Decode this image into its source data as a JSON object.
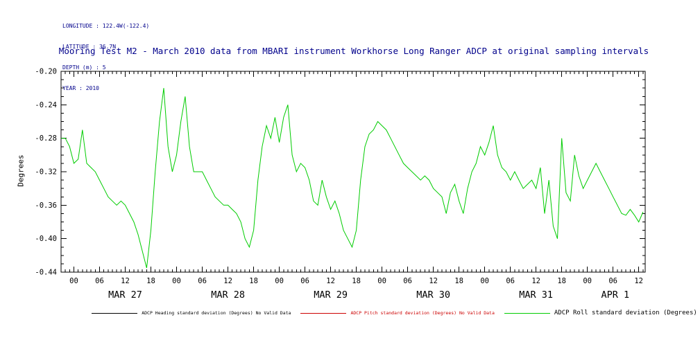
{
  "header_info": {
    "longitude": "LONGITUDE : 122.4W(-122.4)",
    "latitude": "LATITUDE : 36.7N",
    "depth": "DEPTH (m) : 5",
    "year": "YEAR : 2010"
  },
  "chart_data": {
    "type": "line",
    "title": "Mooring Test M2 - March 2010 data from MBARI instrument Workhorse Long Ranger ADCP at original sampling intervals",
    "xlabel": "",
    "ylabel": "Degrees",
    "ylim": [
      -0.44,
      -0.2
    ],
    "ytick_step": 0.04,
    "ytick_labels": [
      "-0.20",
      "-0.24",
      "-0.28",
      "-0.32",
      "-0.36",
      "-0.40",
      "-0.44"
    ],
    "xlim_hours": [
      -3,
      133.5
    ],
    "x_major_tick_hours": 6,
    "x_minor_tick_hours": 1,
    "x_tick_label_cycle": [
      "00",
      "06",
      "12",
      "18"
    ],
    "grid": false,
    "legend_position": "bottom",
    "day_labels": [
      {
        "label": "MAR 27",
        "hour": 12
      },
      {
        "label": "MAR 28",
        "hour": 36
      },
      {
        "label": "MAR 29",
        "hour": 60
      },
      {
        "label": "MAR 30",
        "hour": 84
      },
      {
        "label": "MAR 31",
        "hour": 108
      },
      {
        "label": "APR 1",
        "hour": 126.5
      }
    ],
    "series": [
      {
        "name": "ADCP Heading standard deviation (Degrees)",
        "color": "#000000",
        "status": "No Valid Data",
        "values": []
      },
      {
        "name": "ADCP Pitch standard deviation (Degrees)",
        "color": "#cc0000",
        "status": "No Valid Data",
        "values": []
      },
      {
        "name": "ADCP Roll standard deviation (Degrees)",
        "color": "#00cc00",
        "status": "",
        "x_start_hour": -3,
        "x_step_hours": 1,
        "values": [
          -0.28,
          -0.28,
          -0.29,
          -0.31,
          -0.305,
          -0.27,
          -0.31,
          -0.315,
          -0.32,
          -0.33,
          -0.34,
          -0.35,
          -0.355,
          -0.36,
          -0.355,
          -0.36,
          -0.37,
          -0.38,
          -0.395,
          -0.415,
          -0.435,
          -0.39,
          -0.32,
          -0.26,
          -0.22,
          -0.29,
          -0.32,
          -0.3,
          -0.26,
          -0.23,
          -0.29,
          -0.32,
          -0.32,
          -0.32,
          -0.33,
          -0.34,
          -0.35,
          -0.355,
          -0.36,
          -0.36,
          -0.365,
          -0.37,
          -0.38,
          -0.4,
          -0.41,
          -0.39,
          -0.33,
          -0.29,
          -0.265,
          -0.28,
          -0.255,
          -0.285,
          -0.255,
          -0.24,
          -0.3,
          -0.32,
          -0.31,
          -0.315,
          -0.33,
          -0.355,
          -0.36,
          -0.33,
          -0.35,
          -0.365,
          -0.355,
          -0.37,
          -0.39,
          -0.4,
          -0.41,
          -0.39,
          -0.33,
          -0.29,
          -0.275,
          -0.27,
          -0.26,
          -0.265,
          -0.27,
          -0.28,
          -0.29,
          -0.3,
          -0.31,
          -0.315,
          -0.32,
          -0.325,
          -0.33,
          -0.325,
          -0.33,
          -0.34,
          -0.345,
          -0.35,
          -0.37,
          -0.345,
          -0.335,
          -0.355,
          -0.37,
          -0.34,
          -0.32,
          -0.31,
          -0.29,
          -0.3,
          -0.285,
          -0.265,
          -0.3,
          -0.315,
          -0.32,
          -0.33,
          -0.32,
          -0.33,
          -0.34,
          -0.335,
          -0.33,
          -0.34,
          -0.315,
          -0.37,
          -0.33,
          -0.385,
          -0.4,
          -0.28,
          -0.345,
          -0.355,
          -0.3,
          -0.325,
          -0.34,
          -0.33,
          -0.32,
          -0.31,
          -0.32,
          -0.33,
          -0.34,
          -0.35,
          -0.36,
          -0.37,
          -0.372,
          -0.365,
          -0.372,
          -0.38,
          -0.368
        ]
      }
    ]
  },
  "legend": {
    "items": [
      {
        "label": "ADCP Heading standard deviation (Degrees) No Valid Data",
        "color": "#000000",
        "text_color": "#000000"
      },
      {
        "label": "ADCP Pitch standard deviation (Degrees) No Valid Data",
        "color": "#cc0000",
        "text_color": "#cc0000"
      },
      {
        "label": "ADCP Roll standard deviation (Degrees)",
        "color": "#00cc00",
        "text_color": "#000000"
      }
    ]
  },
  "colors": {
    "text_navy": "#00008b",
    "axis": "#000000",
    "background": "#ffffff"
  }
}
